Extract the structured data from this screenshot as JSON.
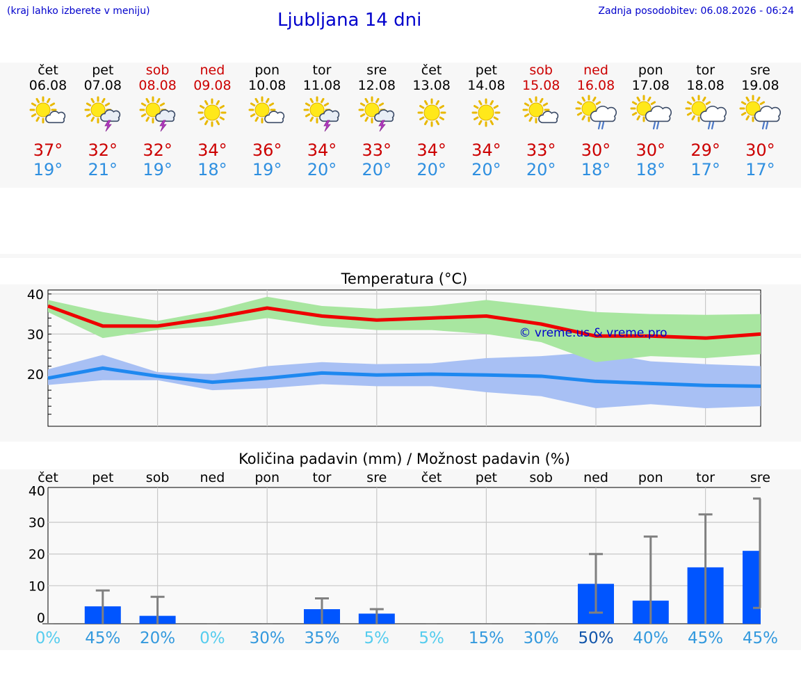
{
  "header": {
    "hint": "(kraj lahko izberete v meniju)",
    "title": "Ljubljana 14 dni",
    "updated": "Zadnja posodobitev: 06.08.2026 - 06:24"
  },
  "days": [
    {
      "name": "čet",
      "date": "06.08",
      "weekend": false,
      "icon": "sun-cloud-icon",
      "max": "37°",
      "min": "19°"
    },
    {
      "name": "pet",
      "date": "07.08",
      "weekend": false,
      "icon": "sun-thunder-icon",
      "max": "32°",
      "min": "21°"
    },
    {
      "name": "sob",
      "date": "08.08",
      "weekend": true,
      "icon": "sun-thunder-icon",
      "max": "32°",
      "min": "19°"
    },
    {
      "name": "ned",
      "date": "09.08",
      "weekend": true,
      "icon": "sun-icon",
      "max": "34°",
      "min": "18°"
    },
    {
      "name": "pon",
      "date": "10.08",
      "weekend": false,
      "icon": "sun-cloud-icon",
      "max": "36°",
      "min": "19°"
    },
    {
      "name": "tor",
      "date": "11.08",
      "weekend": false,
      "icon": "sun-thunder-icon",
      "max": "34°",
      "min": "20°"
    },
    {
      "name": "sre",
      "date": "12.08",
      "weekend": false,
      "icon": "sun-thunder-icon",
      "max": "33°",
      "min": "20°"
    },
    {
      "name": "čet",
      "date": "13.08",
      "weekend": false,
      "icon": "sun-icon",
      "max": "34°",
      "min": "20°"
    },
    {
      "name": "pet",
      "date": "14.08",
      "weekend": false,
      "icon": "sun-icon",
      "max": "34°",
      "min": "20°"
    },
    {
      "name": "sob",
      "date": "15.08",
      "weekend": true,
      "icon": "sun-cloud-icon",
      "max": "33°",
      "min": "20°"
    },
    {
      "name": "ned",
      "date": "16.08",
      "weekend": true,
      "icon": "sun-rain-icon",
      "max": "30°",
      "min": "18°"
    },
    {
      "name": "pon",
      "date": "17.08",
      "weekend": false,
      "icon": "sun-rain-icon",
      "max": "30°",
      "min": "18°"
    },
    {
      "name": "tor",
      "date": "18.08",
      "weekend": false,
      "icon": "sun-rain-icon",
      "max": "29°",
      "min": "17°"
    },
    {
      "name": "sre",
      "date": "19.08",
      "weekend": false,
      "icon": "sun-rain-icon",
      "max": "30°",
      "min": "17°"
    }
  ],
  "colors": {
    "max": "#ee0000",
    "min": "#1e88f0",
    "max_band": "#a8e6a0",
    "min_band": "#a8c0f4",
    "bar": "#0055ff",
    "whisker": "#808080",
    "watermark": "#0000cc"
  },
  "chart_data": [
    {
      "type": "line",
      "title": "Temperatura (°C)",
      "x": [
        0,
        1,
        2,
        3,
        4,
        5,
        6,
        7,
        8,
        9,
        10,
        11,
        12,
        13
      ],
      "ylim": [
        7,
        41
      ],
      "yticks": [
        20,
        30,
        40
      ],
      "grid": true,
      "watermark": "© vreme.us & vreme.pro",
      "series": [
        {
          "role": "max",
          "values": [
            37,
            32,
            32,
            34,
            36.5,
            34.5,
            33.5,
            34,
            34.5,
            32.5,
            29.5,
            29.5,
            29,
            30
          ]
        },
        {
          "role": "max_low",
          "values": [
            35.5,
            29,
            31,
            32,
            34,
            32,
            31,
            31,
            30,
            28,
            23,
            24.5,
            24,
            25
          ]
        },
        {
          "role": "max_high",
          "values": [
            38.5,
            35.5,
            33.3,
            35.8,
            39.3,
            37,
            36.3,
            37,
            38.5,
            37,
            35.5,
            35,
            34.8,
            35
          ]
        },
        {
          "role": "min",
          "values": [
            19,
            21.5,
            19.5,
            18,
            19,
            20.3,
            19.8,
            20,
            19.8,
            19.5,
            18.2,
            17.7,
            17.2,
            17
          ]
        },
        {
          "role": "min_low",
          "values": [
            17.3,
            18.5,
            18.5,
            16,
            16.5,
            17.5,
            17,
            17,
            15.5,
            14.5,
            11.5,
            12.5,
            11.5,
            12
          ]
        },
        {
          "role": "min_high",
          "values": [
            21.2,
            24.8,
            20.5,
            20,
            22,
            23,
            22.5,
            22.7,
            24,
            24.5,
            25.5,
            23.2,
            22.5,
            22
          ]
        }
      ]
    },
    {
      "type": "bar",
      "title": "Količina padavin (mm) / Možnost padavin (%)",
      "categories": [
        "čet",
        "pet",
        "sob",
        "ned",
        "pon",
        "tor",
        "sre",
        "čet",
        "pet",
        "sob",
        "ned",
        "pon",
        "tor",
        "sre"
      ],
      "ylim": [
        -2,
        41
      ],
      "yticks": [
        0,
        10,
        20,
        30,
        40
      ],
      "grid": true,
      "values": [
        0,
        3.5,
        0.5,
        0,
        0,
        2.6,
        1.2,
        0,
        0,
        0,
        10.6,
        5.3,
        15.8,
        21
      ],
      "range_low": [
        0,
        0,
        0,
        0,
        0,
        0,
        0,
        0,
        0,
        0,
        1.5,
        0,
        0,
        3
      ],
      "range_high": [
        0,
        8.5,
        6.5,
        0,
        0,
        6,
        2.6,
        0,
        0,
        0,
        20,
        25.5,
        32.5,
        37.5
      ],
      "probability": [
        "0%",
        "45%",
        "20%",
        "0%",
        "30%",
        "35%",
        "5%",
        "5%",
        "15%",
        "30%",
        "50%",
        "40%",
        "45%",
        "45%"
      ],
      "probability_colors": [
        "#55ccee",
        "#3399dd",
        "#3399dd",
        "#55ccee",
        "#3399dd",
        "#3399dd",
        "#55ccee",
        "#55ccee",
        "#3399dd",
        "#3399dd",
        "#1155aa",
        "#3399dd",
        "#3399dd",
        "#3399dd"
      ]
    }
  ]
}
